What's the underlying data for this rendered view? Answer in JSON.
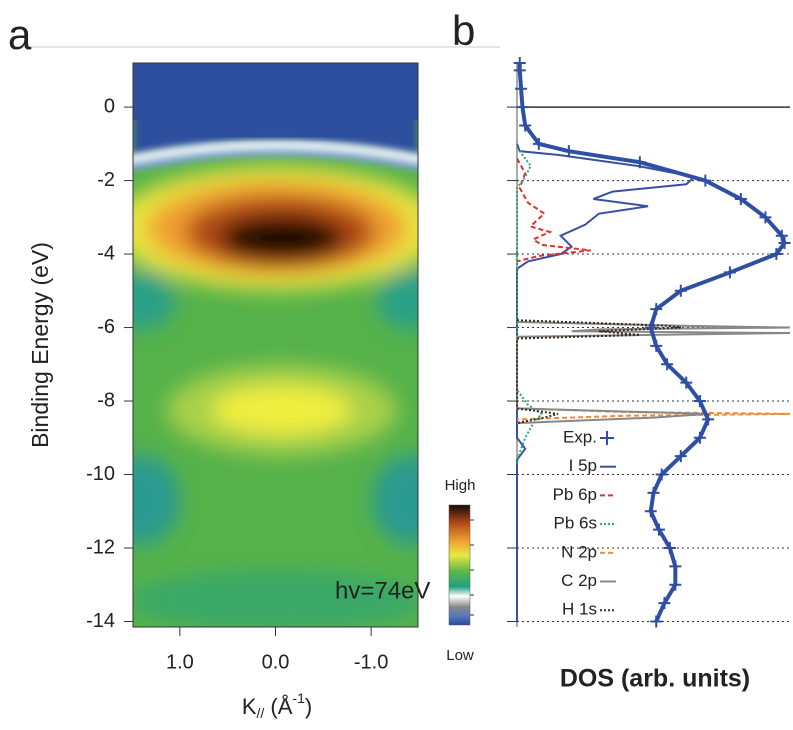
{
  "chart_data": [
    {
      "type": "heatmap",
      "panel_label": "a",
      "ylabel": "Binding Energy (eV)",
      "xlabel": [
        "K",
        "//",
        " (Å",
        "-1",
        ")"
      ],
      "xlim": [
        1.49,
        -1.49
      ],
      "xticks": [
        {
          "value": 1,
          "label": "1.0"
        },
        {
          "value": 0,
          "label": "0.0"
        },
        {
          "value": -1,
          "label": "-1.0"
        }
      ],
      "ylim": [
        -14.15,
        1.2
      ],
      "yticks": [
        0,
        -2,
        -4,
        -6,
        -8,
        -10,
        -12,
        -14
      ],
      "annotation": "hv=74eV",
      "colorbar": {
        "high": "High",
        "low": "Low"
      }
    },
    {
      "type": "line",
      "panel_label": "b",
      "xlabel": "DOS (arb. units)",
      "xlim": [
        0,
        1
      ],
      "ylim": [
        -14.15,
        1.2
      ],
      "series": [
        {
          "name": "Exp.",
          "color": "#2e4fa3",
          "marker": "+",
          "y": [
            1.2,
            1,
            0.5,
            0,
            -0.5,
            -1,
            -1.2,
            -1.5,
            -2,
            -2.5,
            -3,
            -3.5,
            -3.7,
            -4,
            -4.5,
            -5,
            -5.5,
            -6,
            -6.5,
            -7,
            -7.5,
            -8,
            -8.5,
            -9,
            -9.5,
            -10,
            -10.5,
            -11,
            -11.5,
            -12,
            -12.5,
            -13,
            -13.5,
            -14
          ],
          "values": [
            0.01,
            0.01,
            0.015,
            0.02,
            0.03,
            0.08,
            0.19,
            0.45,
            0.69,
            0.82,
            0.91,
            0.97,
            0.98,
            0.95,
            0.78,
            0.6,
            0.51,
            0.49,
            0.51,
            0.55,
            0.62,
            0.67,
            0.7,
            0.67,
            0.6,
            0.53,
            0.5,
            0.49,
            0.52,
            0.56,
            0.58,
            0.58,
            0.54,
            0.51
          ]
        },
        {
          "name": "I 5p",
          "color": "#3a4fa0",
          "line_style": "solid",
          "y": [
            -1,
            -1.2,
            -1.3,
            -1.6,
            -1.9,
            -2.1,
            -2.3,
            -2.5,
            -2.7,
            -2.9,
            -3.2,
            -3.5,
            -3.8,
            -4,
            -4.2,
            -4.4,
            -9,
            -9.3,
            -9.6,
            -14
          ],
          "values": [
            0,
            0.01,
            0.15,
            0.44,
            0.65,
            0.62,
            0.35,
            0.28,
            0.48,
            0.3,
            0.25,
            0.16,
            0.2,
            0.16,
            0.04,
            0,
            0,
            0.03,
            0,
            0
          ]
        },
        {
          "name": "Pb 6p",
          "color": "#e0302a",
          "line_style": "dashed",
          "y": [
            -1.4,
            -1.8,
            -2.2,
            -2.6,
            -2.9,
            -3.1,
            -3.25,
            -3.4,
            -3.6,
            -3.75,
            -3.9,
            -4.05,
            -4.2
          ],
          "values": [
            0,
            0.03,
            0.01,
            0.04,
            0.1,
            0.07,
            0.05,
            0.12,
            0.06,
            0.09,
            0.27,
            0.08,
            0
          ]
        },
        {
          "name": "Pb 6s",
          "color": "#2aa86a",
          "line_style": "dotted",
          "y": [
            -1.1,
            -1.3,
            -1.6,
            -1.9,
            -2.2,
            -7.7,
            -8.1,
            -8.35,
            -8.6,
            -9,
            -9.4,
            -9.7
          ],
          "values": [
            0,
            0.02,
            0.05,
            0.03,
            0,
            0,
            0.04,
            0.09,
            0.06,
            0.03,
            0.01,
            0
          ]
        },
        {
          "name": "N 2p",
          "color": "#f08a30",
          "line_style": "dashed",
          "y": [
            -8.2,
            -8.3,
            -8.35,
            -8.4,
            -8.5
          ],
          "values": [
            0,
            0.4,
            1,
            0.4,
            0
          ]
        },
        {
          "name": "C 2p",
          "color": "#888888",
          "line_style": "solid",
          "y": [
            -5.85,
            -5.95,
            -6.0,
            -6.05,
            -6.1,
            -6.15,
            -6.25,
            -8.2,
            -8.35,
            -8.45,
            -8.6
          ],
          "values": [
            0,
            0.6,
            1,
            0.3,
            0.2,
            1,
            0,
            0,
            0.7,
            0.5,
            0
          ]
        },
        {
          "name": "H 1s",
          "color": "#3a2a1a",
          "line_style": "dotted",
          "y": [
            -5.8,
            -5.95,
            -6.0,
            -6.1,
            -6.2,
            -6.3,
            -8.2,
            -8.35,
            -8.45,
            -8.6
          ],
          "values": [
            0,
            0.55,
            0.6,
            0.3,
            0.45,
            0,
            0,
            0.15,
            0.1,
            0
          ]
        }
      ]
    }
  ]
}
